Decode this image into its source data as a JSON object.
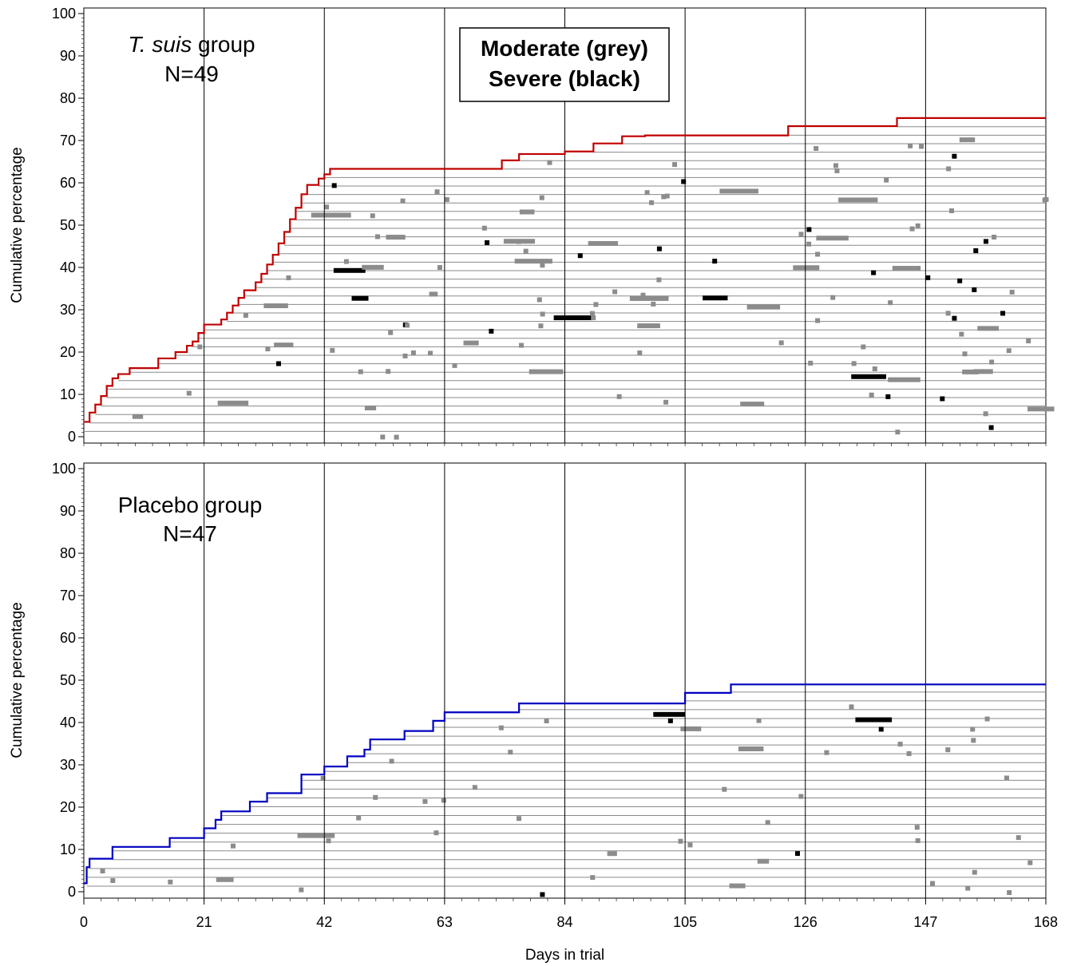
{
  "colors": {
    "moderate": "#8c8c8c",
    "severe": "#000000",
    "tsuis_curve": "#c00000",
    "placebo_curve": "#0000c0",
    "patient_line": "#8a8a8a"
  },
  "legend": {
    "line1": "Moderate (grey)",
    "line2": "Severe (black)"
  },
  "x_axis": {
    "title": "Days in trial",
    "ticks": [
      "0",
      "21",
      "42",
      "63",
      "84",
      "105",
      "126",
      "147",
      "168"
    ]
  },
  "chart_data": [
    {
      "type": "line",
      "title": "",
      "group_name": "T. suis",
      "group_suffix": "group",
      "n_label": "N=49",
      "xlabel": "Days in trial",
      "ylabel": "Cumulative percentage",
      "xlim": [
        0,
        168
      ],
      "ylim": [
        0,
        100
      ],
      "yticks": [
        "0",
        "10",
        "20",
        "30",
        "40",
        "50",
        "60",
        "70",
        "80",
        "90",
        "100"
      ],
      "reference_lines_x": [
        21,
        42,
        63,
        84,
        105,
        126,
        147
      ],
      "grid": false,
      "series": [
        {
          "name": "",
          "color": "#c00000",
          "steps": [
            [
              0,
              3.5
            ],
            [
              1,
              5.7
            ],
            [
              2,
              7.6
            ],
            [
              3,
              9.6
            ],
            [
              4,
              12
            ],
            [
              5,
              13.8
            ],
            [
              6,
              14.8
            ],
            [
              8,
              16.2
            ],
            [
              13,
              18.5
            ],
            [
              16,
              20
            ],
            [
              18,
              21.5
            ],
            [
              19,
              22.5
            ],
            [
              20,
              24.5
            ],
            [
              21,
              26.5
            ],
            [
              24,
              27.7
            ],
            [
              25,
              29.3
            ],
            [
              26,
              31
            ],
            [
              27,
              32.8
            ],
            [
              28,
              34.6
            ],
            [
              30,
              36.5
            ],
            [
              31,
              38.5
            ],
            [
              32,
              40.7
            ],
            [
              33,
              43
            ],
            [
              34,
              45.7
            ],
            [
              35,
              48.4
            ],
            [
              36,
              51.4
            ],
            [
              37,
              54.1
            ],
            [
              38,
              57.3
            ],
            [
              39,
              59.5
            ],
            [
              41,
              61
            ],
            [
              42,
              62
            ],
            [
              43,
              63.3
            ],
            [
              73,
              65.3
            ],
            [
              76,
              66.8
            ],
            [
              84,
              67.4
            ],
            [
              89,
              69.3
            ],
            [
              94,
              71
            ],
            [
              98,
              71.2
            ],
            [
              123,
              73.4
            ],
            [
              142,
              75.3
            ],
            [
              168,
              75.3
            ]
          ]
        }
      ]
    },
    {
      "type": "line",
      "title": "",
      "group_name": "Placebo group",
      "n_label": "N=47",
      "xlabel": "Days in trial",
      "ylabel": "Cumulative percentage",
      "xlim": [
        0,
        168
      ],
      "ylim": [
        0,
        100
      ],
      "yticks": [
        "0",
        "10",
        "20",
        "30",
        "40",
        "50",
        "60",
        "70",
        "80",
        "90",
        "100"
      ],
      "reference_lines_x": [
        21,
        42,
        63,
        84,
        105,
        126,
        147
      ],
      "grid": false,
      "series": [
        {
          "name": "",
          "color": "#0000c0",
          "steps": [
            [
              0,
              2
            ],
            [
              0.5,
              5.8
            ],
            [
              1,
              7.8
            ],
            [
              5,
              10.6
            ],
            [
              15,
              12.7
            ],
            [
              21,
              15
            ],
            [
              23,
              17
            ],
            [
              24,
              19
            ],
            [
              29,
              21.3
            ],
            [
              32,
              23.3
            ],
            [
              38,
              27.7
            ],
            [
              42,
              29.6
            ],
            [
              46,
              32
            ],
            [
              49,
              33.6
            ],
            [
              50,
              36
            ],
            [
              56,
              38
            ],
            [
              61,
              40.4
            ],
            [
              63,
              42.4
            ],
            [
              76,
              44.5
            ],
            [
              105,
              47
            ],
            [
              113,
              49
            ],
            [
              168,
              49
            ]
          ]
        }
      ]
    }
  ]
}
